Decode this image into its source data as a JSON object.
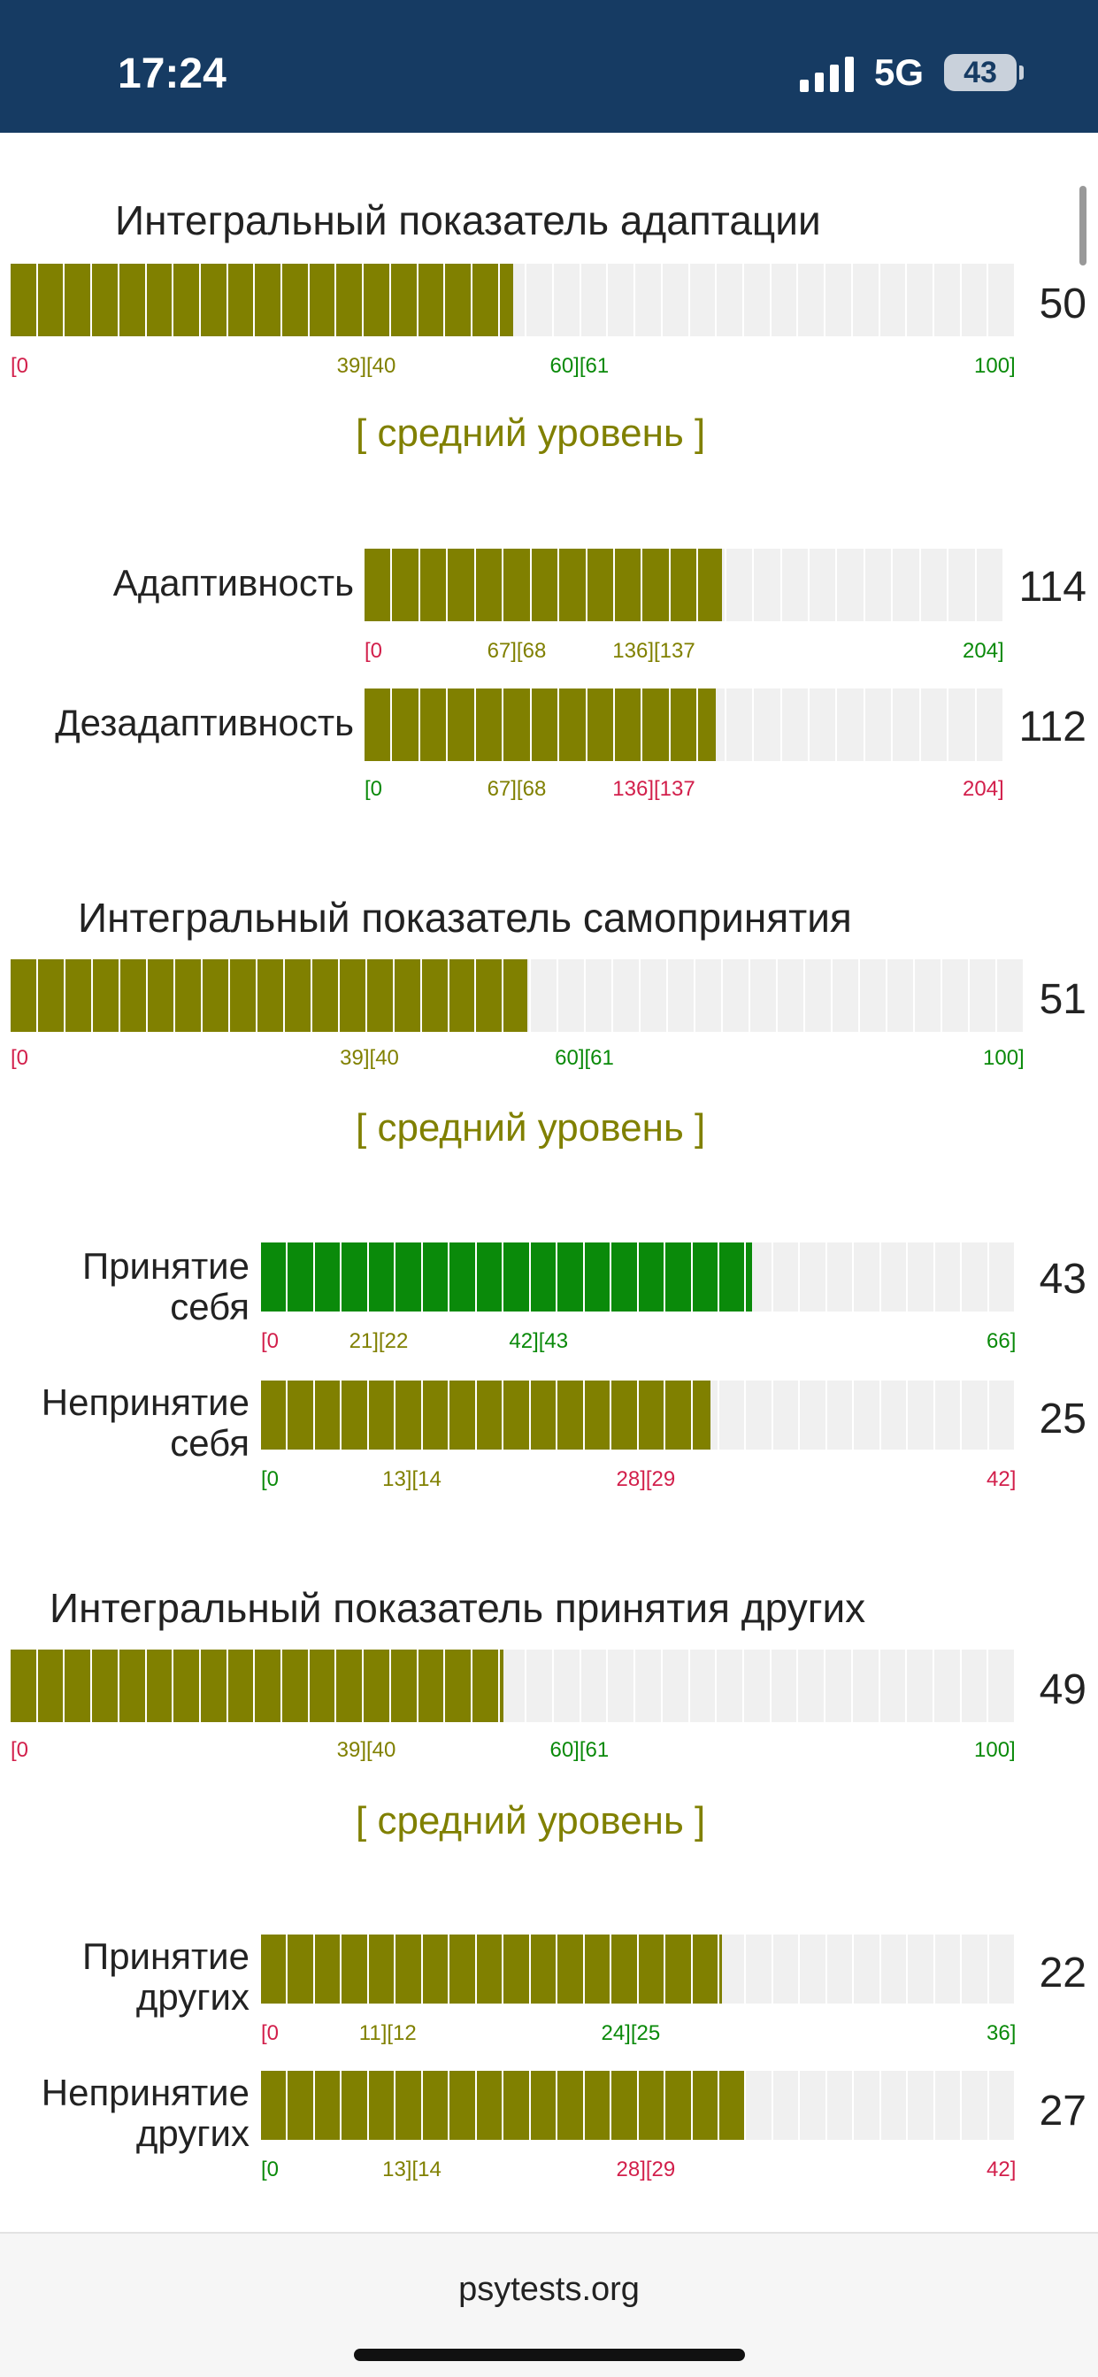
{
  "status_bar": {
    "time": "17:24",
    "network": "5G",
    "battery": "43"
  },
  "colors": {
    "olive": "#808000",
    "green": "#0a8a0a",
    "red": "#d21f4b",
    "header": "#163b63",
    "track": "#f0f0f0"
  },
  "level_text": "[ средний уровень ]",
  "sections": [
    {
      "title": "Интегральный показатель адаптации",
      "score": "50",
      "fill_fraction": 0.5,
      "color": "olive",
      "scale": [
        "[0",
        "39][40",
        "60][61",
        "100]"
      ],
      "scale_colors": [
        "red",
        "olive",
        "green",
        "green"
      ],
      "level": "[ средний уровень ]"
    },
    {
      "title": "Интегральный показатель самопринятия",
      "score": "51",
      "fill_fraction": 0.51,
      "color": "olive",
      "scale": [
        "[0",
        "39][40",
        "60][61",
        "100]"
      ],
      "scale_colors": [
        "red",
        "olive",
        "green",
        "green"
      ],
      "level": "[ средний уровень ]"
    },
    {
      "title": "Интегральный показатель принятия других",
      "score": "49",
      "fill_fraction": 0.49,
      "color": "olive",
      "scale": [
        "[0",
        "39][40",
        "60][61",
        "100]"
      ],
      "scale_colors": [
        "red",
        "olive",
        "green",
        "green"
      ],
      "level": "[ средний уровень ]"
    }
  ],
  "subscales": [
    {
      "label": "Адаптивность",
      "score": "114",
      "fill_fraction": 0.559,
      "color": "olive",
      "scale": [
        "[0",
        "67][68",
        "136][137",
        "204]"
      ],
      "scale_colors": [
        "red",
        "olive",
        "olive",
        "green"
      ]
    },
    {
      "label": "Дезадаптивность",
      "score": "112",
      "fill_fraction": 0.549,
      "color": "olive",
      "scale": [
        "[0",
        "67][68",
        "136][137",
        "204]"
      ],
      "scale_colors": [
        "green",
        "olive",
        "red",
        "red"
      ]
    },
    {
      "label": "Принятие себя",
      "score": "43",
      "fill_fraction": 0.651,
      "color": "green",
      "scale": [
        "[0",
        "21][22",
        "42][43",
        "66]"
      ],
      "scale_colors": [
        "red",
        "olive",
        "green",
        "green"
      ]
    },
    {
      "label": "Непринятие себя",
      "score": "25",
      "fill_fraction": 0.595,
      "color": "olive",
      "scale": [
        "[0",
        "13][14",
        "28][29",
        "42]"
      ],
      "scale_colors": [
        "green",
        "olive",
        "red",
        "red"
      ]
    },
    {
      "label": "Принятие других",
      "score": "22",
      "fill_fraction": 0.611,
      "color": "olive",
      "scale": [
        "[0",
        "11][12",
        "24][25",
        "36]"
      ],
      "scale_colors": [
        "red",
        "olive",
        "green",
        "green"
      ]
    },
    {
      "label": "Непринятие других",
      "score": "27",
      "fill_fraction": 0.643,
      "color": "olive",
      "scale": [
        "[0",
        "13][14",
        "28][29",
        "42]"
      ],
      "scale_colors": [
        "green",
        "olive",
        "red",
        "red"
      ]
    }
  ],
  "footer": {
    "site": "psytests.org"
  }
}
